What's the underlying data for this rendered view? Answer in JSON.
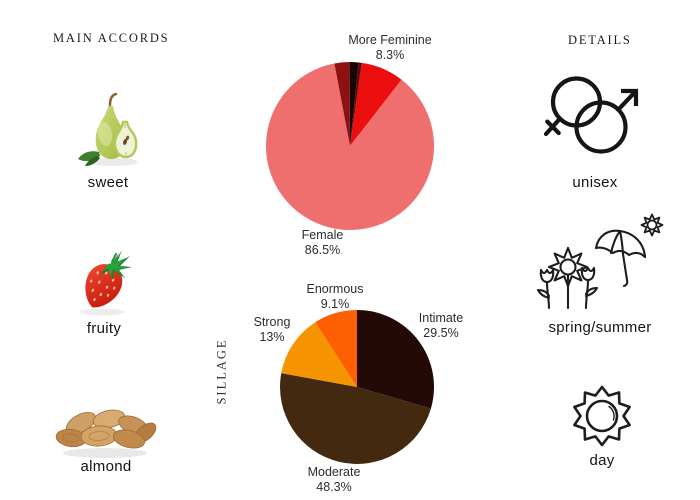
{
  "page": {
    "background": "#ffffff"
  },
  "accords": {
    "header": "MAIN ACCORDS",
    "items": [
      {
        "label": "sweet",
        "image": "pear"
      },
      {
        "label": "fruity",
        "image": "strawberry"
      },
      {
        "label": "almond",
        "image": "almonds"
      }
    ]
  },
  "details": {
    "header": "DETAILS",
    "items": [
      {
        "label": "unisex",
        "icon": "unisex-gender-icon"
      },
      {
        "label": "spring/summer",
        "icon": "spring-summer-icon"
      },
      {
        "label": "day",
        "icon": "day-sun-icon"
      }
    ]
  },
  "chart_data": [
    {
      "type": "pie",
      "name": "gender-votes",
      "labels": [
        "More Feminine",
        "Female",
        "unlabeled-dark-red",
        "unlabeled-black",
        "unlabeled-maroon-sliver"
      ],
      "values": [
        8.3,
        86.5,
        2.9,
        1.7,
        0.6
      ],
      "colors": [
        "#ec0e0e",
        "#ef6e6e",
        "#8e1111",
        "#1a0505",
        "#5a0b0b"
      ],
      "start_angle_deg": 8,
      "direction": "clockwise",
      "legend": "off",
      "annotations": [
        {
          "text": "More Feminine",
          "pct": "8.3%",
          "position": "top-right"
        },
        {
          "text": "Female",
          "pct": "86.5%",
          "position": "bottom-left"
        }
      ]
    },
    {
      "type": "pie",
      "name": "sillage-votes",
      "axis_title": "SILLAGE",
      "labels": [
        "Intimate",
        "Moderate",
        "Strong",
        "Enormous"
      ],
      "values": [
        29.5,
        48.3,
        13,
        9.1
      ],
      "colors": [
        "#230a06",
        "#42290f",
        "#f59300",
        "#fe5f02"
      ],
      "start_angle_deg": 0,
      "direction": "clockwise",
      "legend": "off",
      "annotations": [
        {
          "text": "Enormous",
          "pct": "9.1%",
          "position": "top"
        },
        {
          "text": "Strong",
          "pct": "13%",
          "position": "left"
        },
        {
          "text": "Intimate",
          "pct": "29.5%",
          "position": "right"
        },
        {
          "text": "Moderate",
          "pct": "48.3%",
          "position": "bottom"
        }
      ]
    }
  ]
}
